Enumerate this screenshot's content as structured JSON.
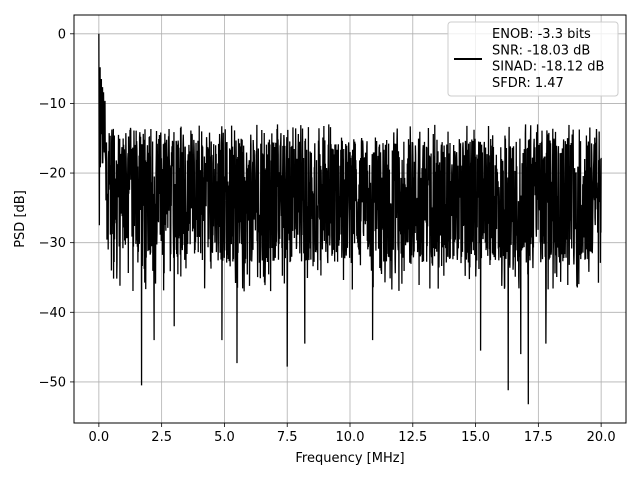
{
  "chart_data": {
    "type": "line",
    "xlabel": "Frequency [MHz]",
    "ylabel": "PSD [dB]",
    "xlim": [
      -0.99,
      20.99
    ],
    "ylim": [
      -55.9,
      2.7
    ],
    "xticks": [
      0.0,
      2.5,
      5.0,
      7.5,
      10.0,
      12.5,
      15.0,
      17.5,
      20.0
    ],
    "xtick_labels": [
      "0.0",
      "2.5",
      "5.0",
      "7.5",
      "10.0",
      "12.5",
      "15.0",
      "17.5",
      "20.0"
    ],
    "yticks": [
      0,
      -10,
      -20,
      -30,
      -40,
      -50
    ],
    "ytick_labels": [
      "0",
      "−10",
      "−20",
      "−30",
      "−40",
      "−50"
    ],
    "grid": true,
    "legend_position": "top-right",
    "series": [
      {
        "name": "ENOB: -3.3 bits\nSNR: -18.03 dB\nSINAD: -18.12 dB\nSFDR: 1.47",
        "color": "#000000",
        "x_range": [
          0.0,
          20.0
        ],
        "sample_count": 2048,
        "description": "dense noise floor roughly between -35 and -12 dB, peak 0 dB at 0 MHz",
        "notable_points": [
          {
            "x": 0.0,
            "y": 0.0
          },
          {
            "x": 0.02,
            "y": -27.5
          },
          {
            "x": 0.05,
            "y": -4.8
          },
          {
            "x": 0.1,
            "y": -6.5
          },
          {
            "x": 0.5,
            "y": -34.0
          },
          {
            "x": 1.7,
            "y": -50.5
          },
          {
            "x": 2.2,
            "y": -44.0
          },
          {
            "x": 3.0,
            "y": -42.0
          },
          {
            "x": 4.9,
            "y": -44.0
          },
          {
            "x": 5.5,
            "y": -47.3
          },
          {
            "x": 7.5,
            "y": -47.8
          },
          {
            "x": 8.2,
            "y": -44.5
          },
          {
            "x": 10.9,
            "y": -44.0
          },
          {
            "x": 15.2,
            "y": -45.5
          },
          {
            "x": 16.3,
            "y": -51.2
          },
          {
            "x": 16.8,
            "y": -46.0
          },
          {
            "x": 17.1,
            "y": -53.2
          },
          {
            "x": 17.8,
            "y": -44.5
          }
        ]
      }
    ],
    "legend": {
      "lines": [
        "ENOB: -3.3 bits",
        "SNR: -18.03 dB",
        "SINAD: -18.12 dB",
        "SFDR: 1.47"
      ]
    }
  },
  "colors": {
    "line": "#000000",
    "grid": "#b0b0b0",
    "legend_border": "#cccccc"
  }
}
